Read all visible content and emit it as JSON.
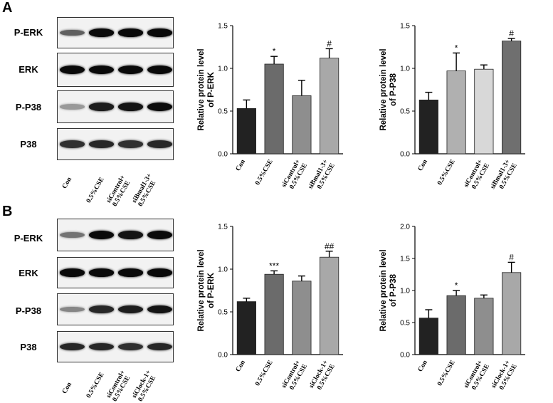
{
  "panels": [
    {
      "letter": "A",
      "blots": [
        {
          "label": "P-ERK",
          "intensities": [
            0.55,
            1.0,
            1.0,
            1.0
          ]
        },
        {
          "label": "ERK",
          "intensities": [
            1.0,
            1.0,
            1.0,
            1.0
          ]
        },
        {
          "label": "P-P38",
          "intensities": [
            0.25,
            0.9,
            0.95,
            1.0
          ]
        },
        {
          "label": "P38",
          "intensities": [
            0.8,
            0.85,
            0.8,
            0.85
          ]
        }
      ],
      "lanes": [
        {
          "l1": "Con",
          "l2": ""
        },
        {
          "l1": "0.5%CSE",
          "l2": ""
        },
        {
          "l1": "siControl+",
          "l2": "0.5%CSE"
        },
        {
          "l1": "siBmal1-3+",
          "l2": "0.5%CSE"
        }
      ]
    },
    {
      "letter": "B",
      "blots": [
        {
          "label": "P-ERK",
          "intensities": [
            0.45,
            1.0,
            0.95,
            1.0
          ]
        },
        {
          "label": "ERK",
          "intensities": [
            1.0,
            1.0,
            1.0,
            1.0
          ]
        },
        {
          "label": "P-P38",
          "intensities": [
            0.35,
            0.85,
            0.9,
            0.95
          ]
        },
        {
          "label": "P38",
          "intensities": [
            0.85,
            0.85,
            0.8,
            0.85
          ]
        }
      ],
      "lanes": [
        {
          "l1": "Con",
          "l2": ""
        },
        {
          "l1": "0.5%CSE",
          "l2": ""
        },
        {
          "l1": "siControl+",
          "l2": "0.5%CSE"
        },
        {
          "l1": "siClock-1+",
          "l2": "0.5%CSE"
        }
      ]
    }
  ],
  "chart_data": [
    {
      "type": "bar",
      "panel": "A",
      "ylabel_line1": "Relative protein level",
      "ylabel_line2": "of P-ERK",
      "ylim": [
        0,
        1.5
      ],
      "yticks": [
        "0.0",
        "0.5",
        "1.0",
        "1.5"
      ],
      "categories": [
        "Con",
        "0.5%CSE",
        "siControl+ 0.5%CSE",
        "siBmal1-3+ 0.5%CSE"
      ],
      "values": [
        0.53,
        1.05,
        0.68,
        1.12
      ],
      "errors": [
        0.1,
        0.09,
        0.18,
        0.11
      ],
      "annotations": [
        "",
        "*",
        "",
        "#"
      ],
      "colors": [
        "#222222",
        "#6b6b6b",
        "#8e8e8e",
        "#a8a8a8"
      ]
    },
    {
      "type": "bar",
      "panel": "A",
      "ylabel_line1": "Relative protein level",
      "ylabel_line2": "of P-P38",
      "ylim": [
        0,
        1.5
      ],
      "yticks": [
        "0.0",
        "0.5",
        "1.0",
        "1.5"
      ],
      "categories": [
        "Con",
        "0.5%CSE",
        "siControl+ 0.5%CSE",
        "siBmal1-3+ 0.5%CSE"
      ],
      "values": [
        0.63,
        0.97,
        0.99,
        1.32
      ],
      "errors": [
        0.09,
        0.21,
        0.05,
        0.03
      ],
      "annotations": [
        "",
        "*",
        "",
        "#"
      ],
      "colors": [
        "#222222",
        "#b0b0b0",
        "#d8d8d8",
        "#6f6f6f"
      ]
    },
    {
      "type": "bar",
      "panel": "B",
      "ylabel_line1": "Relative protein level",
      "ylabel_line2": "of P-ERK",
      "ylim": [
        0,
        1.5
      ],
      "yticks": [
        "0.0",
        "0.5",
        "1.0",
        "1.5"
      ],
      "categories": [
        "Con",
        "0.5%CSE",
        "siControl+ 0.5%CSE",
        "siClock-1+ 0.5%CSE"
      ],
      "values": [
        0.62,
        0.94,
        0.86,
        1.14
      ],
      "errors": [
        0.04,
        0.04,
        0.06,
        0.07
      ],
      "annotations": [
        "",
        "***",
        "",
        "##"
      ],
      "colors": [
        "#222222",
        "#6b6b6b",
        "#8e8e8e",
        "#a8a8a8"
      ]
    },
    {
      "type": "bar",
      "panel": "B",
      "ylabel_line1": "Relative protein level",
      "ylabel_line2": "of P-P38",
      "ylim": [
        0,
        2.0
      ],
      "yticks": [
        "0.0",
        "0.5",
        "1.0",
        "1.5",
        "2.0"
      ],
      "categories": [
        "Con",
        "0.5%CSE",
        "siControl+ 0.5%CSE",
        "siClock-1+ 0.5%CSE"
      ],
      "values": [
        0.57,
        0.92,
        0.88,
        1.28
      ],
      "errors": [
        0.13,
        0.08,
        0.05,
        0.16
      ],
      "annotations": [
        "",
        "*",
        "",
        "#"
      ],
      "colors": [
        "#222222",
        "#6b6b6b",
        "#8e8e8e",
        "#a8a8a8"
      ]
    }
  ]
}
